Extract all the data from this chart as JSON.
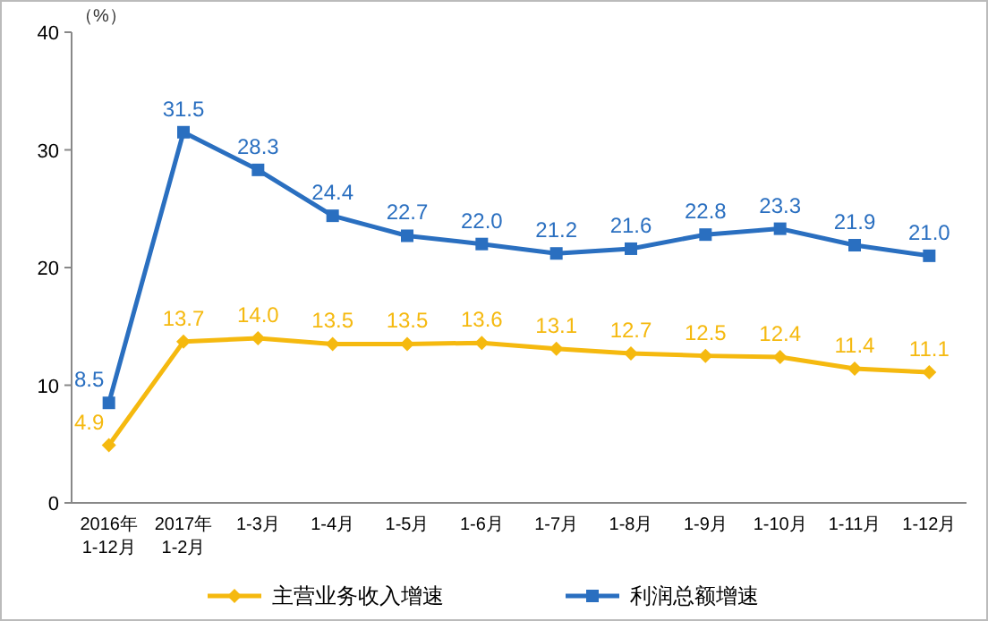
{
  "chart_data": {
    "type": "line",
    "ylabel": "（%）",
    "categories": [
      "2016年\n1-12月",
      "2017年\n1-2月",
      "1-3月",
      "1-4月",
      "1-5月",
      "1-6月",
      "1-7月",
      "1-8月",
      "1-9月",
      "1-10月",
      "1-11月",
      "1-12月"
    ],
    "series": [
      {
        "name": "主营业务收入增速",
        "color": "#f5b90f",
        "marker": "diamond",
        "values": [
          4.9,
          13.7,
          14.0,
          13.5,
          13.5,
          13.6,
          13.1,
          12.7,
          12.5,
          12.4,
          11.4,
          11.1
        ],
        "value_labels": [
          "4.9",
          "13.7",
          "14.0",
          "13.5",
          "13.5",
          "13.6",
          "13.1",
          "12.7",
          "12.5",
          "12.4",
          "11.4",
          "11.1"
        ]
      },
      {
        "name": "利润总额增速",
        "color": "#2a6fc0",
        "marker": "square",
        "values": [
          8.5,
          31.5,
          28.3,
          24.4,
          22.7,
          22.0,
          21.2,
          21.6,
          22.8,
          23.3,
          21.9,
          21.0
        ],
        "value_labels": [
          "8.5",
          "31.5",
          "28.3",
          "24.4",
          "22.7",
          "22.0",
          "21.2",
          "21.6",
          "22.8",
          "23.3",
          "21.9",
          "21.0"
        ]
      }
    ],
    "ylim": [
      0,
      40
    ],
    "yticks": [
      0,
      10,
      20,
      30,
      40
    ],
    "legend": "bottom",
    "grid": false,
    "line_style": "solid"
  }
}
